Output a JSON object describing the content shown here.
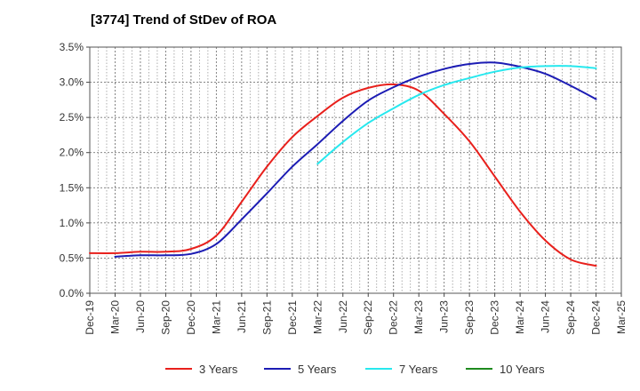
{
  "chart_data": {
    "type": "line",
    "title": "[3774]  Trend of StDev of ROA",
    "xlabel": "",
    "ylabel": "",
    "x_ticks": [
      "Dec-19",
      "Mar-20",
      "Jun-20",
      "Sep-20",
      "Dec-20",
      "Mar-21",
      "Jun-21",
      "Sep-21",
      "Dec-21",
      "Mar-22",
      "Jun-22",
      "Sep-22",
      "Dec-22",
      "Mar-23",
      "Jun-23",
      "Sep-23",
      "Dec-23",
      "Mar-24",
      "Jun-24",
      "Sep-24",
      "Dec-24",
      "Mar-25"
    ],
    "y_ticks": [
      "0.0%",
      "0.5%",
      "1.0%",
      "1.5%",
      "2.0%",
      "2.5%",
      "3.0%",
      "3.5%"
    ],
    "ylim": [
      0,
      3.5
    ],
    "grid": true,
    "legend_position": "bottom",
    "series": [
      {
        "name": "3 Years",
        "color": "#e8201c",
        "x": [
          "Dec-19",
          "Mar-20",
          "Jun-20",
          "Sep-20",
          "Dec-20",
          "Mar-21",
          "Jun-21",
          "Sep-21",
          "Dec-21",
          "Mar-22",
          "Jun-22",
          "Sep-22",
          "Dec-22",
          "Mar-23",
          "Jun-23",
          "Sep-23",
          "Dec-23",
          "Mar-24",
          "Jun-24",
          "Sep-24",
          "Dec-24"
        ],
        "values": [
          0.57,
          0.57,
          0.59,
          0.59,
          0.63,
          0.82,
          1.3,
          1.8,
          2.22,
          2.52,
          2.78,
          2.92,
          2.97,
          2.88,
          2.55,
          2.16,
          1.66,
          1.16,
          0.75,
          0.48,
          0.39
        ]
      },
      {
        "name": "5 Years",
        "color": "#1c1cb4",
        "x": [
          "Mar-20",
          "Jun-20",
          "Sep-20",
          "Dec-20",
          "Mar-21",
          "Jun-21",
          "Sep-21",
          "Dec-21",
          "Mar-22",
          "Jun-22",
          "Sep-22",
          "Dec-22",
          "Mar-23",
          "Jun-23",
          "Sep-23",
          "Dec-23",
          "Mar-24",
          "Jun-24",
          "Sep-24",
          "Dec-24"
        ],
        "values": [
          0.52,
          0.54,
          0.54,
          0.56,
          0.7,
          1.05,
          1.42,
          1.8,
          2.12,
          2.45,
          2.74,
          2.93,
          3.08,
          3.19,
          3.26,
          3.28,
          3.22,
          3.12,
          2.95,
          2.76
        ]
      },
      {
        "name": "7 Years",
        "color": "#27e8ee",
        "x": [
          "Mar-22",
          "Jun-22",
          "Sep-22",
          "Dec-22",
          "Mar-23",
          "Jun-23",
          "Sep-23",
          "Dec-23",
          "Mar-24",
          "Jun-24",
          "Sep-24",
          "Dec-24"
        ],
        "values": [
          1.84,
          2.15,
          2.42,
          2.63,
          2.82,
          2.96,
          3.06,
          3.15,
          3.21,
          3.23,
          3.23,
          3.2
        ]
      },
      {
        "name": "10 Years",
        "color": "#1e8a1e",
        "x": [],
        "values": []
      }
    ]
  }
}
